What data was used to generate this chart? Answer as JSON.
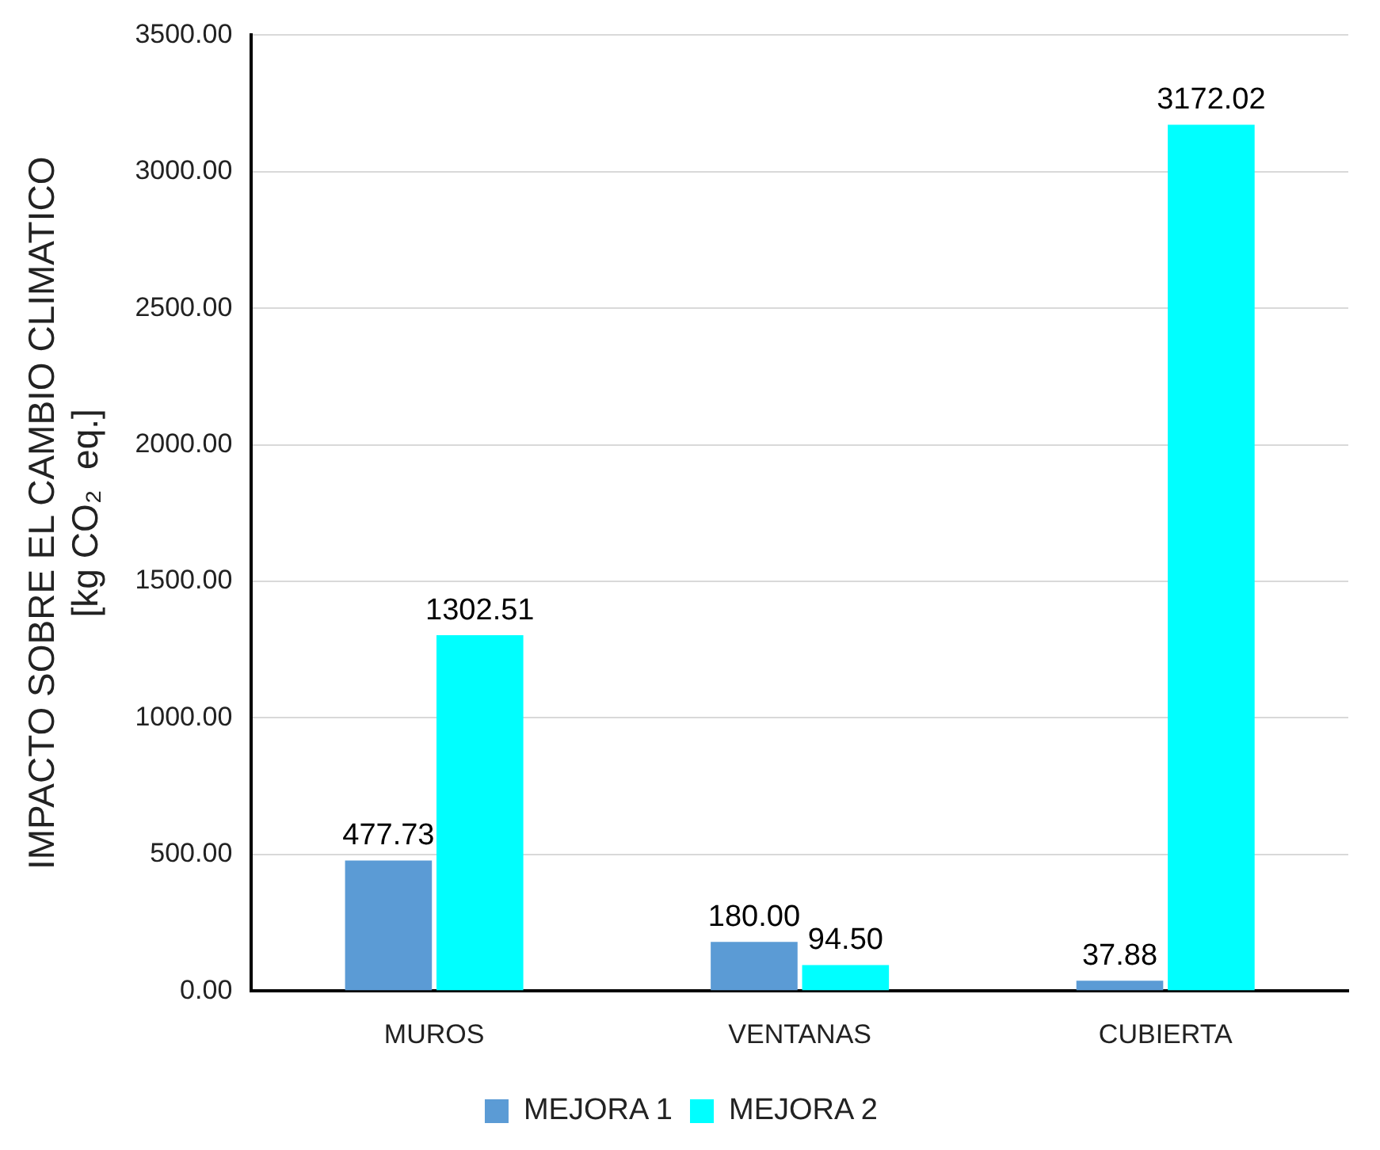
{
  "chart_data": {
    "type": "bar",
    "ylabel": "IMPACTO SOBRE EL CAMBIO CLIMATICO\n[kg CO₂  eq.]",
    "categories": [
      "MUROS",
      "VENTANAS",
      "CUBIERTA"
    ],
    "series": [
      {
        "name": "MEJORA 1",
        "color": "#5b9bd5",
        "values": [
          477.73,
          180.0,
          37.88
        ],
        "value_labels": [
          "477.73",
          "180.00",
          "37.88"
        ]
      },
      {
        "name": "MEJORA 2",
        "color": "#00ffff",
        "values": [
          1302.51,
          94.5,
          3172.02
        ],
        "value_labels": [
          "1302.51",
          "94.50",
          "3172.02"
        ]
      }
    ],
    "ylim": [
      0,
      3500
    ],
    "yticks": [
      {
        "value": 0,
        "label": "0.00"
      },
      {
        "value": 500,
        "label": "500.00"
      },
      {
        "value": 1000,
        "label": "1000.00"
      },
      {
        "value": 1500,
        "label": "1500.00"
      },
      {
        "value": 2000,
        "label": "2000.00"
      },
      {
        "value": 2500,
        "label": "2500.00"
      },
      {
        "value": 3000,
        "label": "3000.00"
      },
      {
        "value": 3500,
        "label": "3500.00"
      }
    ],
    "grid": "y",
    "legend": "bottom"
  }
}
